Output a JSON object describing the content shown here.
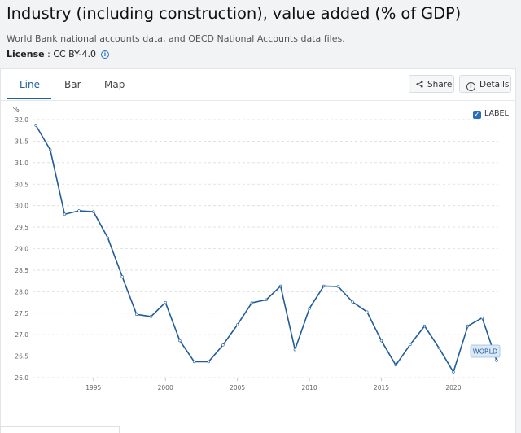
{
  "header": {
    "title": "Industry (including construction), value added (% of GDP)",
    "source": "World Bank national accounts data, and OECD National Accounts data files.",
    "license_label": "License",
    "license_sep": " : ",
    "license_value": "CC BY-4.0",
    "info_glyph": "i"
  },
  "tabs": [
    {
      "label": "Line",
      "active": true
    },
    {
      "label": "Bar",
      "active": false
    },
    {
      "label": "Map",
      "active": false
    }
  ],
  "actions": {
    "share_label": "Share",
    "details_label": "Details",
    "share_icon": "share-icon",
    "details_icon": "info-icon"
  },
  "label_toggle": {
    "text": "LABEL",
    "checked": true
  },
  "colors": {
    "line": "#1f5c99",
    "accent": "#2a6ebb",
    "grid": "#dcdcdc"
  },
  "chart_data": {
    "type": "line",
    "title": "",
    "ylabel": "%",
    "xlabel": "",
    "ylim": [
      26.0,
      32.0
    ],
    "yticks": [
      26.0,
      26.5,
      27.0,
      27.5,
      28.0,
      28.5,
      29.0,
      29.5,
      30.0,
      30.5,
      31.0,
      31.5,
      32.0
    ],
    "xlim": [
      1991,
      2023
    ],
    "xticks": [
      1995,
      2000,
      2005,
      2010,
      2015,
      2020
    ],
    "grid": true,
    "series": [
      {
        "name": "WORLD",
        "x": [
          1991,
          1992,
          1993,
          1994,
          1995,
          1996,
          1997,
          1998,
          1999,
          2000,
          2001,
          2002,
          2003,
          2004,
          2005,
          2006,
          2007,
          2008,
          2009,
          2010,
          2011,
          2012,
          2013,
          2014,
          2015,
          2016,
          2017,
          2018,
          2019,
          2020,
          2021,
          2022,
          2023
        ],
        "values": [
          31.87,
          31.3,
          29.8,
          29.88,
          29.86,
          29.25,
          28.35,
          27.47,
          27.42,
          27.75,
          26.86,
          26.37,
          26.37,
          26.76,
          27.23,
          27.74,
          27.81,
          28.13,
          26.65,
          27.61,
          28.13,
          28.12,
          27.76,
          27.53,
          26.86,
          26.29,
          26.77,
          27.2,
          26.69,
          26.13,
          27.2,
          27.39,
          26.4
        ]
      }
    ],
    "series_end_label": "WORLD"
  }
}
